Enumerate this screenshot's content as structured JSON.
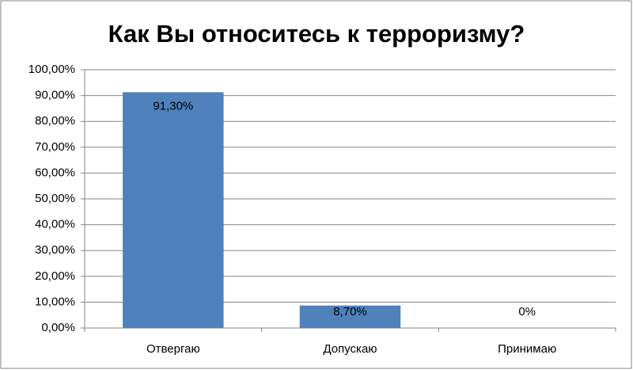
{
  "chart_data": {
    "type": "bar",
    "title": "Как Вы относитесь к терроризму?",
    "categories": [
      "Отвергаю",
      "Допускаю",
      "Принимаю"
    ],
    "values": [
      91.3,
      8.7,
      0
    ],
    "value_labels": [
      "91,30%",
      "8,70%",
      "0%"
    ],
    "color": "#4f81bd",
    "ylim": [
      0,
      100
    ],
    "yticks": [
      {
        "value": 0,
        "label": "0,00%"
      },
      {
        "value": 10,
        "label": "10,00%"
      },
      {
        "value": 20,
        "label": "20,00%"
      },
      {
        "value": 30,
        "label": "30,00%"
      },
      {
        "value": 40,
        "label": "40,00%"
      },
      {
        "value": 50,
        "label": "50,00%"
      },
      {
        "value": 60,
        "label": "60,00%"
      },
      {
        "value": 70,
        "label": "70,00%"
      },
      {
        "value": 80,
        "label": "80,00%"
      },
      {
        "value": 90,
        "label": "90,00%"
      },
      {
        "value": 100,
        "label": "100,00%"
      }
    ],
    "grid": true
  }
}
